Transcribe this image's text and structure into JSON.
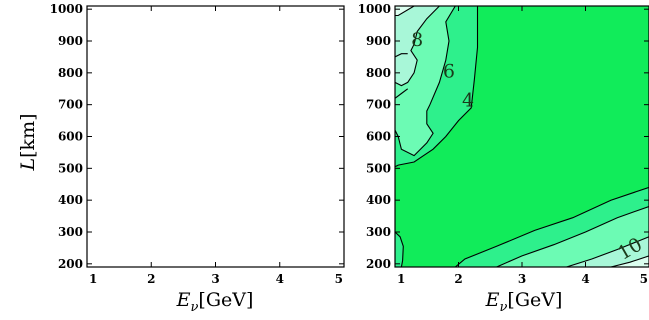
{
  "chart_data": [
    {
      "type": "contour",
      "panel": "left",
      "xlabel_main": "E",
      "xlabel_sub": "ν",
      "xlabel_unit": "[GeV]",
      "ylabel_main": "L",
      "ylabel_unit": "[km]",
      "xlim": [
        1,
        5
      ],
      "ylim": [
        190,
        1010
      ],
      "xticks": [
        "1",
        "2",
        "3",
        "4",
        "5"
      ],
      "yticks": [
        "200",
        "300",
        "400",
        "500",
        "600",
        "700",
        "800",
        "900",
        "1000"
      ],
      "contour_levels": [],
      "regions": []
    },
    {
      "type": "contour",
      "panel": "right",
      "xlabel_main": "E",
      "xlabel_sub": "ν",
      "xlabel_unit": "[GeV]",
      "xlim": [
        1,
        5
      ],
      "ylim": [
        190,
        1010
      ],
      "xticks": [
        "1",
        "2",
        "3",
        "4",
        "5"
      ],
      "yticks": [
        "200",
        "300",
        "400",
        "500",
        "600",
        "700",
        "800",
        "900",
        "1000"
      ],
      "colors": {
        "region_10": "#dcfff0",
        "region_8": "#a8f7d8",
        "region_6": "#6cfbb4",
        "region_4": "#2ef08c",
        "region_lt4": "#11ec5a",
        "contour_line": "#000000"
      },
      "contour_labels": [
        {
          "text": "8",
          "x": 1.35,
          "y": 885
        },
        {
          "text": "6",
          "x": 1.85,
          "y": 785
        },
        {
          "text": "4",
          "x": 2.15,
          "y": 695
        },
        {
          "text": "10",
          "x": 4.75,
          "y": 230
        }
      ],
      "regions": [
        {
          "level": "4",
          "color": "region_4",
          "points": [
            [
              1,
              1010
            ],
            [
              2.3,
              1010
            ],
            [
              2.3,
              880
            ],
            [
              2.25,
              780
            ],
            [
              2.2,
              690
            ],
            [
              2.0,
              650
            ],
            [
              1.8,
              600
            ],
            [
              1.6,
              560
            ],
            [
              1.45,
              540
            ],
            [
              1.3,
              520
            ],
            [
              1.05,
              510
            ],
            [
              1,
              505
            ],
            [
              1,
              1010
            ]
          ]
        },
        {
          "level": "6",
          "color": "region_6",
          "points": [
            [
              1,
              1010
            ],
            [
              1.95,
              1010
            ],
            [
              1.8,
              960
            ],
            [
              1.85,
              900
            ],
            [
              1.8,
              840
            ],
            [
              1.7,
              770
            ],
            [
              1.55,
              700
            ],
            [
              1.5,
              680
            ],
            [
              1.5,
              640
            ],
            [
              1.6,
              610
            ],
            [
              1.5,
              580
            ],
            [
              1.3,
              540
            ],
            [
              1.1,
              560
            ],
            [
              1.05,
              600
            ],
            [
              1,
              620
            ],
            [
              1,
              1010
            ]
          ]
        },
        {
          "level": "8",
          "color": "region_8",
          "points": [
            [
              1,
              1010
            ],
            [
              1.7,
              1010
            ],
            [
              1.6,
              990
            ],
            [
              1.5,
              970
            ],
            [
              1.35,
              930
            ],
            [
              1.3,
              890
            ],
            [
              1.25,
              870
            ],
            [
              1.35,
              840
            ],
            [
              1.3,
              800
            ],
            [
              1.2,
              770
            ],
            [
              1.1,
              760
            ],
            [
              1,
              770
            ],
            [
              1,
              1010
            ]
          ]
        },
        {
          "level": "10",
          "color": "region_10",
          "points": [
            [
              1,
              1010
            ],
            [
              1.3,
              1010
            ],
            [
              1.05,
              980
            ],
            [
              1,
              980
            ],
            [
              1,
              1010
            ]
          ]
        },
        {
          "level": "4",
          "color": "region_4",
          "points": [
            [
              1.95,
              190
            ],
            [
              2.1,
              215
            ],
            [
              2.6,
              255
            ],
            [
              3.2,
              305
            ],
            [
              3.8,
              345
            ],
            [
              4.4,
              400
            ],
            [
              5,
              440
            ],
            [
              5,
              190
            ],
            [
              1.95,
              190
            ]
          ]
        },
        {
          "level": "6",
          "color": "region_6",
          "points": [
            [
              2.6,
              190
            ],
            [
              3.0,
              225
            ],
            [
              3.5,
              260
            ],
            [
              4.0,
              300
            ],
            [
              4.5,
              345
            ],
            [
              5,
              380
            ],
            [
              5,
              190
            ],
            [
              2.6,
              190
            ]
          ]
        },
        {
          "level": "8",
          "color": "region_8",
          "points": [
            [
              3.7,
              190
            ],
            [
              4.1,
              215
            ],
            [
              4.5,
              245
            ],
            [
              5,
              285
            ],
            [
              5,
              190
            ],
            [
              3.7,
              190
            ]
          ]
        },
        {
          "level": "10",
          "color": "region_10",
          "points": [
            [
              4.4,
              190
            ],
            [
              4.7,
              205
            ],
            [
              5,
              225
            ],
            [
              5,
              190
            ],
            [
              4.4,
              190
            ]
          ]
        },
        {
          "level": "4",
          "color": "region_4",
          "points": [
            [
              1,
              300
            ],
            [
              1.08,
              285
            ],
            [
              1.13,
              255
            ],
            [
              1.12,
              210
            ],
            [
              1.1,
              190
            ],
            [
              1,
              190
            ],
            [
              1,
              300
            ]
          ]
        }
      ],
      "lines": [
        [
          [
            1,
            505
          ],
          [
            1.05,
            510
          ],
          [
            1.3,
            520
          ],
          [
            1.45,
            540
          ],
          [
            1.6,
            560
          ],
          [
            1.8,
            600
          ],
          [
            2.0,
            650
          ],
          [
            2.2,
            690
          ],
          [
            2.25,
            780
          ],
          [
            2.3,
            880
          ],
          [
            2.3,
            1010
          ]
        ],
        [
          [
            1,
            620
          ],
          [
            1.05,
            600
          ],
          [
            1.1,
            560
          ],
          [
            1.3,
            540
          ],
          [
            1.5,
            580
          ],
          [
            1.6,
            610
          ],
          [
            1.5,
            640
          ],
          [
            1.5,
            680
          ],
          [
            1.55,
            700
          ],
          [
            1.7,
            770
          ],
          [
            1.8,
            840
          ],
          [
            1.85,
            900
          ],
          [
            1.8,
            960
          ],
          [
            1.95,
            1010
          ]
        ],
        [
          [
            1,
            770
          ],
          [
            1.1,
            760
          ],
          [
            1.2,
            770
          ],
          [
            1.3,
            800
          ],
          [
            1.35,
            840
          ],
          [
            1.25,
            870
          ],
          [
            1.3,
            890
          ],
          [
            1.35,
            930
          ],
          [
            1.5,
            970
          ],
          [
            1.6,
            990
          ],
          [
            1.7,
            1010
          ]
        ],
        [
          [
            1,
            980
          ],
          [
            1.05,
            980
          ],
          [
            1.3,
            1010
          ]
        ],
        [
          [
            1,
            850
          ],
          [
            1.1,
            860
          ],
          [
            1.2,
            860
          ]
        ],
        [
          [
            1,
            720
          ],
          [
            1.1,
            735
          ],
          [
            1.2,
            750
          ]
        ],
        [
          [
            1.95,
            190
          ],
          [
            2.1,
            215
          ],
          [
            2.6,
            255
          ],
          [
            3.2,
            305
          ],
          [
            3.8,
            345
          ],
          [
            4.4,
            400
          ],
          [
            5,
            440
          ]
        ],
        [
          [
            2.6,
            190
          ],
          [
            3.0,
            225
          ],
          [
            3.5,
            260
          ],
          [
            4.0,
            300
          ],
          [
            4.5,
            345
          ],
          [
            5,
            380
          ]
        ],
        [
          [
            3.7,
            190
          ],
          [
            4.1,
            215
          ],
          [
            4.5,
            245
          ],
          [
            5,
            285
          ]
        ],
        [
          [
            4.4,
            190
          ],
          [
            4.7,
            205
          ],
          [
            5,
            225
          ]
        ],
        [
          [
            1,
            300
          ],
          [
            1.08,
            285
          ],
          [
            1.13,
            255
          ],
          [
            1.12,
            210
          ],
          [
            1.1,
            190
          ]
        ]
      ]
    }
  ]
}
